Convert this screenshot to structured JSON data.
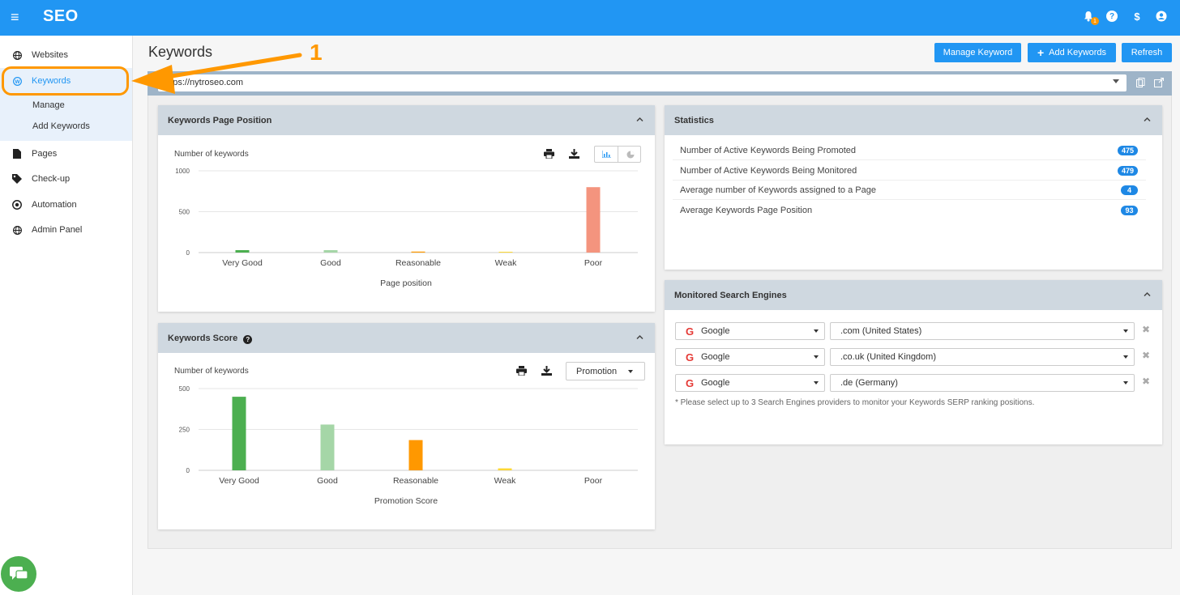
{
  "topbar": {
    "menu_icon": "hamburger-icon",
    "brand": "SEO",
    "notif_count": "1",
    "icons": [
      "bell-icon",
      "help-icon",
      "dollar-icon",
      "user-icon"
    ]
  },
  "sidebar": {
    "items": [
      {
        "label": "Websites",
        "icon": "globe-icon"
      },
      {
        "label": "Keywords",
        "icon": "keyword-icon"
      },
      {
        "label": "Pages",
        "icon": "file-icon"
      },
      {
        "label": "Check-up",
        "icon": "tag-icon"
      },
      {
        "label": "Automation",
        "icon": "eye-icon"
      },
      {
        "label": "Admin Panel",
        "icon": "globe-icon"
      }
    ],
    "sub_items": [
      "Manage",
      "Add Keywords"
    ]
  },
  "header": {
    "title": "Keywords",
    "buttons": [
      "Manage Keyword",
      "Add Keywords",
      "Refresh"
    ]
  },
  "url": {
    "value": "https://nytroseo.com"
  },
  "annotation": {
    "number": "1",
    "color": "#ff9800"
  },
  "colors": {
    "primary": "#2196f3",
    "very_good": "#4caf50",
    "good": "#a5d6a7",
    "reasonable": "#ff9800",
    "weak": "#fdd835",
    "poor": "#f4947e"
  },
  "panels": {
    "position": {
      "title": "Keywords Page Position",
      "chart_caption": "Number of keywords"
    },
    "score": {
      "title": "Keywords Score",
      "chart_caption": "Number of keywords",
      "dropdown": "Promotion"
    },
    "statistics": {
      "title": "Statistics",
      "rows": [
        {
          "label": "Number of Active Keywords Being Promoted",
          "value": "475"
        },
        {
          "label": "Number of Active Keywords Being Monitored",
          "value": "479"
        },
        {
          "label": "Average number of Keywords assigned to a Page",
          "value": "4"
        },
        {
          "label": "Average Keywords Page Position",
          "value": "93"
        }
      ]
    },
    "engines": {
      "title": "Monitored Search Engines",
      "rows": [
        {
          "engine": "Google",
          "domain": ".com (United States)"
        },
        {
          "engine": "Google",
          "domain": ".co.uk (United Kingdom)"
        },
        {
          "engine": "Google",
          "domain": ".de (Germany)"
        }
      ],
      "note": "* Please select up to 3 Search Engines providers to monitor your Keywords SERP ranking positions."
    }
  },
  "chart_data": [
    {
      "type": "bar",
      "title": "Keywords Page Position",
      "ylabel": "Number of keywords",
      "xlabel": "Page position",
      "categories": [
        "Very Good",
        "Good",
        "Reasonable",
        "Weak",
        "Poor"
      ],
      "values": [
        30,
        30,
        12,
        10,
        800
      ],
      "ylim": [
        0,
        1000
      ],
      "yticks": [
        0,
        500,
        1000
      ],
      "grid": true
    },
    {
      "type": "bar",
      "title": "Keywords Score",
      "ylabel": "Number of keywords",
      "xlabel": "Promotion Score",
      "categories": [
        "Very Good",
        "Good",
        "Reasonable",
        "Weak",
        "Poor"
      ],
      "values": [
        450,
        280,
        185,
        12,
        0
      ],
      "ylim": [
        0,
        500
      ],
      "yticks": [
        0,
        250,
        500
      ],
      "grid": true
    }
  ]
}
